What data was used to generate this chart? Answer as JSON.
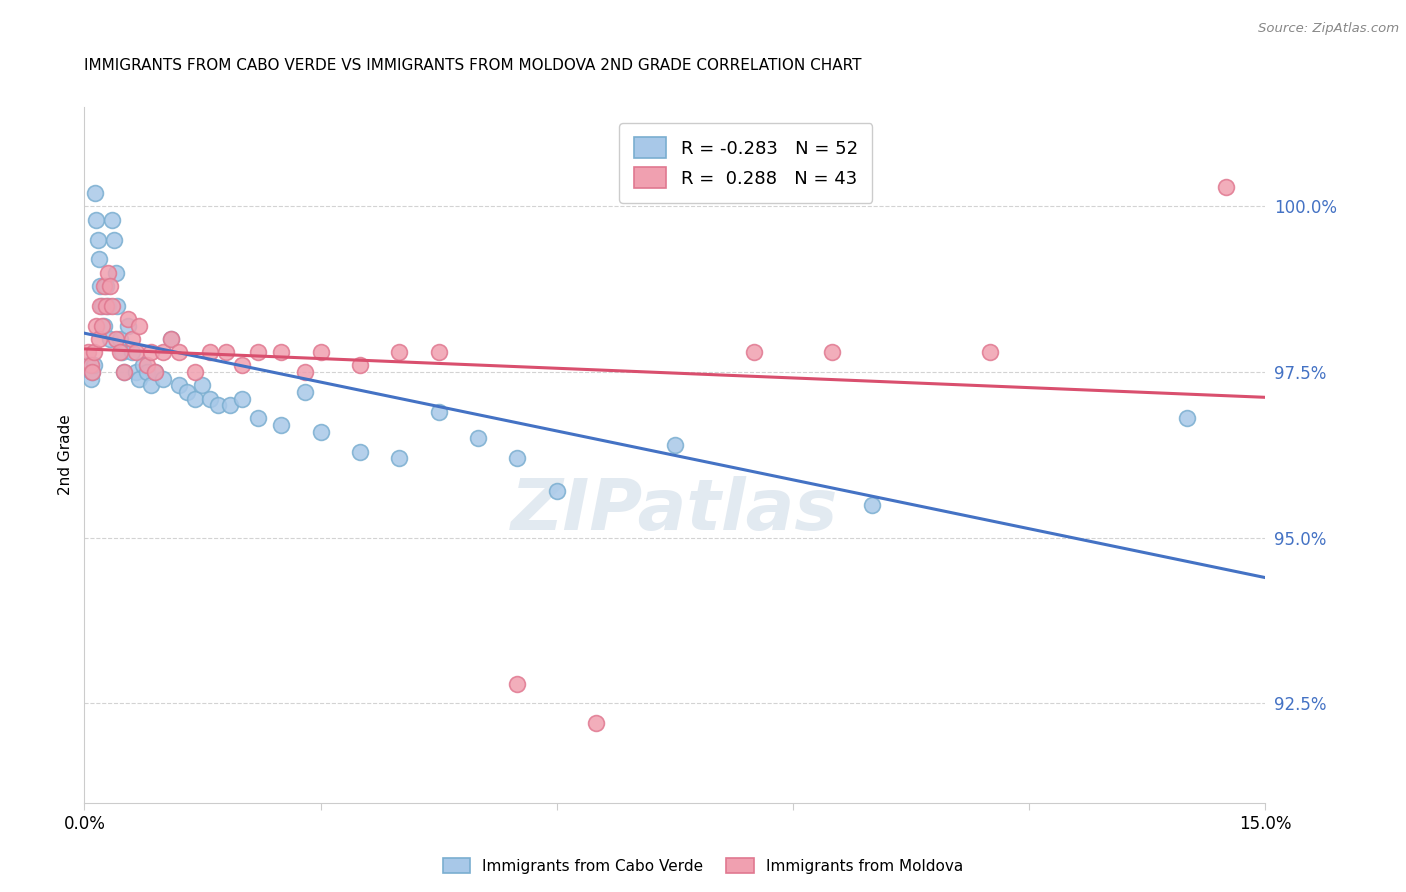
{
  "title": "IMMIGRANTS FROM CABO VERDE VS IMMIGRANTS FROM MOLDOVA 2ND GRADE CORRELATION CHART",
  "source": "Source: ZipAtlas.com",
  "ylabel": "2nd Grade",
  "xlim": [
    0.0,
    15.0
  ],
  "ylim": [
    91.0,
    101.5
  ],
  "yticks": [
    92.5,
    95.0,
    97.5,
    100.0
  ],
  "ytick_labels": [
    "92.5%",
    "95.0%",
    "97.5%",
    "100.0%"
  ],
  "cabo_verde_R": -0.283,
  "cabo_verde_N": 52,
  "moldova_R": 0.288,
  "moldova_N": 43,
  "cabo_verde_color": "#a8c8e8",
  "moldova_color": "#f0a0b0",
  "cabo_verde_edge_color": "#7aaed0",
  "moldova_edge_color": "#e07890",
  "cabo_verde_line_color": "#4472c4",
  "moldova_line_color": "#d94f6e",
  "watermark": "ZIPatlas",
  "cabo_verde_x": [
    0.05,
    0.08,
    0.1,
    0.12,
    0.13,
    0.15,
    0.17,
    0.18,
    0.2,
    0.22,
    0.25,
    0.28,
    0.3,
    0.32,
    0.35,
    0.38,
    0.4,
    0.42,
    0.45,
    0.48,
    0.5,
    0.55,
    0.6,
    0.65,
    0.7,
    0.75,
    0.8,
    0.85,
    0.9,
    1.0,
    1.1,
    1.2,
    1.3,
    1.4,
    1.5,
    1.6,
    1.7,
    1.85,
    2.0,
    2.2,
    2.5,
    2.8,
    3.0,
    3.5,
    4.0,
    4.5,
    5.0,
    5.5,
    6.0,
    7.5,
    10.0,
    14.0
  ],
  "cabo_verde_y": [
    97.6,
    97.4,
    97.5,
    97.6,
    100.2,
    99.8,
    99.5,
    99.2,
    98.8,
    98.5,
    98.2,
    98.8,
    98.5,
    98.0,
    99.8,
    99.5,
    99.0,
    98.5,
    98.0,
    97.8,
    97.5,
    98.2,
    97.8,
    97.5,
    97.4,
    97.6,
    97.5,
    97.3,
    97.5,
    97.4,
    98.0,
    97.3,
    97.2,
    97.1,
    97.3,
    97.1,
    97.0,
    97.0,
    97.1,
    96.8,
    96.7,
    97.2,
    96.6,
    96.3,
    96.2,
    96.9,
    96.5,
    96.2,
    95.7,
    96.4,
    95.5,
    96.8
  ],
  "moldova_x": [
    0.05,
    0.08,
    0.1,
    0.12,
    0.15,
    0.18,
    0.2,
    0.22,
    0.25,
    0.28,
    0.3,
    0.32,
    0.35,
    0.4,
    0.45,
    0.5,
    0.55,
    0.6,
    0.65,
    0.7,
    0.8,
    0.85,
    0.9,
    1.0,
    1.1,
    1.2,
    1.4,
    1.6,
    1.8,
    2.0,
    2.2,
    2.5,
    2.8,
    3.0,
    3.5,
    4.0,
    4.5,
    5.5,
    6.5,
    8.5,
    9.5,
    11.5,
    14.5
  ],
  "moldova_y": [
    97.8,
    97.6,
    97.5,
    97.8,
    98.2,
    98.0,
    98.5,
    98.2,
    98.8,
    98.5,
    99.0,
    98.8,
    98.5,
    98.0,
    97.8,
    97.5,
    98.3,
    98.0,
    97.8,
    98.2,
    97.6,
    97.8,
    97.5,
    97.8,
    98.0,
    97.8,
    97.5,
    97.8,
    97.8,
    97.6,
    97.8,
    97.8,
    97.5,
    97.8,
    97.6,
    97.8,
    97.8,
    92.8,
    92.2,
    97.8,
    97.8,
    97.8,
    100.3
  ]
}
